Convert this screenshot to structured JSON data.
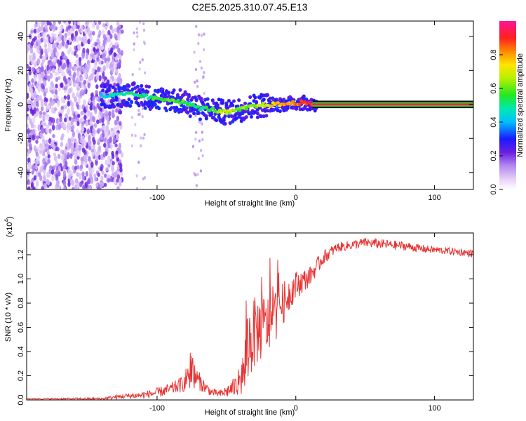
{
  "chart_data": [
    {
      "type": "heatmap",
      "title": "C2E5.2025.310.07.45.E13",
      "xlabel": "Height of straight line (km)",
      "ylabel": "Frequency (Hz)",
      "xlim": [
        -194,
        128
      ],
      "ylim": [
        -50,
        49
      ],
      "xticks": [
        -100,
        0,
        100
      ],
      "yticks": [
        -40,
        -20,
        0,
        20,
        40
      ],
      "colorbar": {
        "label": "Normalized spectral amplitude",
        "range": [
          0,
          1
        ],
        "ticks": [
          "0.0",
          "0.2",
          "0.4",
          "0.6",
          "0.8"
        ]
      },
      "signal_trace": {
        "x": [
          -135,
          -120,
          -110,
          -100,
          -90,
          -80,
          -70,
          -60,
          -55,
          -50,
          -45,
          -40,
          -35,
          -30,
          -20,
          -10,
          0,
          5,
          10,
          15,
          128
        ],
        "y": [
          5,
          6,
          5,
          3,
          3,
          1,
          -2,
          -3,
          -4,
          -5,
          -4,
          -3,
          -2,
          -1,
          0,
          0,
          1,
          1,
          0,
          0,
          0
        ],
        "amplitude": [
          0.45,
          0.5,
          0.5,
          0.55,
          0.6,
          0.55,
          0.5,
          0.55,
          0.65,
          0.7,
          0.65,
          0.6,
          0.6,
          0.65,
          0.7,
          0.8,
          0.85,
          0.9,
          0.9,
          0.9,
          0.95
        ]
      },
      "noise_region_x": [
        -194,
        -125
      ]
    },
    {
      "type": "line",
      "xlabel": "Height of straight line (km)",
      "ylabel": "SNR (10 * v/v)",
      "scale_label": "(x10",
      "scale_exponent": "4",
      "xlim": [
        -194,
        128
      ],
      "ylim": [
        0,
        1.38
      ],
      "xticks": [
        -100,
        0,
        100
      ],
      "yticks": [
        "0.0",
        "0.2",
        "0.4",
        "0.6",
        "0.8",
        "1.0",
        "1.2"
      ],
      "color": "#e83232",
      "series": [
        {
          "name": "SNR",
          "x": [
            -194,
            -160,
            -140,
            -125,
            -110,
            -100,
            -90,
            -80,
            -75,
            -70,
            -65,
            -60,
            -55,
            -50,
            -45,
            -40,
            -37,
            -35,
            -30,
            -25,
            -20,
            -15,
            -10,
            -5,
            0,
            5,
            10,
            15,
            20,
            25,
            30,
            40,
            50,
            60,
            70,
            80,
            90,
            100,
            110,
            120,
            128
          ],
          "y": [
            0.01,
            0.01,
            0.01,
            0.03,
            0.04,
            0.06,
            0.09,
            0.14,
            0.22,
            0.16,
            0.1,
            0.06,
            0.05,
            0.07,
            0.1,
            0.14,
            0.25,
            0.45,
            0.55,
            0.6,
            0.62,
            0.7,
            0.78,
            0.88,
            0.95,
            0.98,
            1.02,
            1.1,
            1.18,
            1.22,
            1.26,
            1.28,
            1.3,
            1.29,
            1.28,
            1.27,
            1.25,
            1.24,
            1.23,
            1.22,
            1.21
          ],
          "spread": [
            0.005,
            0.008,
            0.01,
            0.02,
            0.03,
            0.04,
            0.05,
            0.07,
            0.12,
            0.08,
            0.05,
            0.03,
            0.03,
            0.05,
            0.08,
            0.1,
            0.25,
            0.35,
            0.3,
            0.28,
            0.25,
            0.22,
            0.18,
            0.15,
            0.12,
            0.1,
            0.08,
            0.07,
            0.06,
            0.05,
            0.04,
            0.04,
            0.04,
            0.04,
            0.04,
            0.035,
            0.035,
            0.03,
            0.03,
            0.03,
            0.03
          ]
        }
      ]
    }
  ]
}
